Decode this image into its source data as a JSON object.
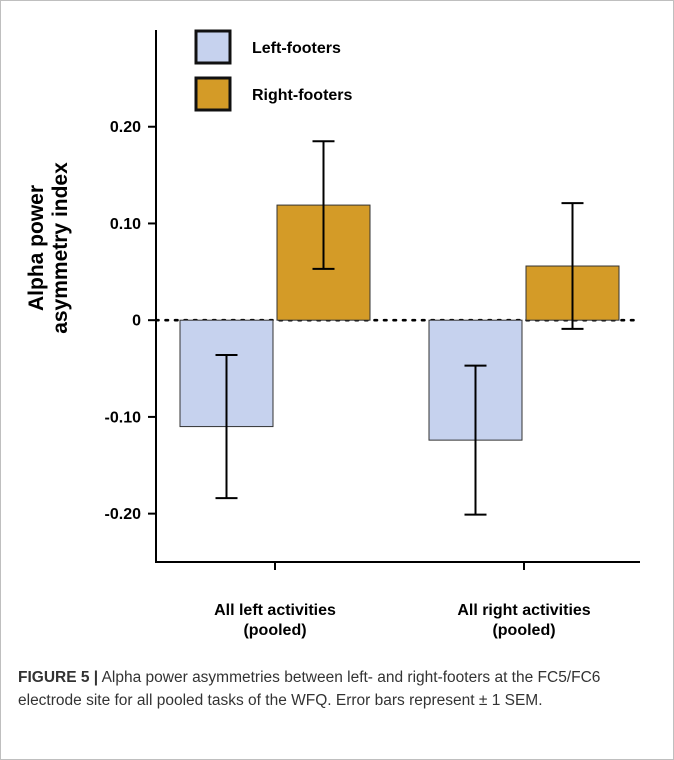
{
  "chart_data": {
    "type": "bar",
    "categories": [
      "All left activities (pooled)",
      "All right activities (pooled)"
    ],
    "category_lines": [
      [
        "All left activities",
        "(pooled)"
      ],
      [
        "All right activities",
        "(pooled)"
      ]
    ],
    "series": [
      {
        "name": "Left-footers",
        "color": "#c6d2ee",
        "values": [
          -0.11,
          -0.124
        ],
        "errors": [
          0.074,
          0.077
        ]
      },
      {
        "name": "Right-footers",
        "color": "#d49b27",
        "values": [
          0.119,
          0.056
        ],
        "errors": [
          0.066,
          0.065
        ]
      }
    ],
    "ylabel_lines": [
      "Alpha power",
      "asymmetry index"
    ],
    "yticks": [
      0.2,
      0.1,
      0,
      -0.1,
      -0.2
    ],
    "ytick_labels": [
      "0.20",
      "0.10",
      "0",
      "-0.10",
      "-0.20"
    ],
    "ylim": [
      -0.25,
      0.3
    ],
    "zero_line": "dotted",
    "legend_position": "top-left",
    "grid": false
  },
  "caption": {
    "label": "FIGURE 5 |",
    "text": " Alpha power asymmetries between left- and right-footers at the FC5/FC6 electrode site for all pooled tasks of the WFQ. Error bars represent ± 1 SEM."
  }
}
